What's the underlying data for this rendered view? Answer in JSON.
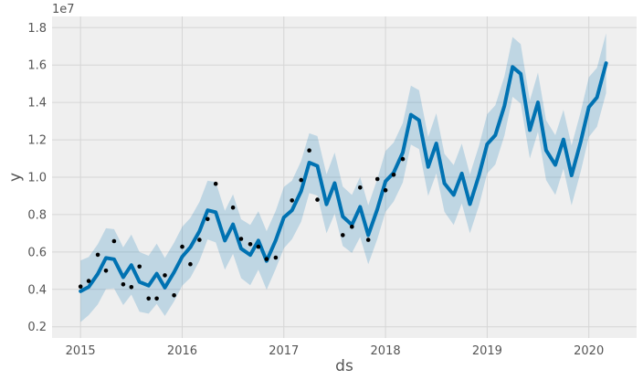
{
  "chart_data": {
    "type": "line",
    "title": "",
    "xlabel": "ds",
    "ylabel": "y",
    "y_offset_label": "1e7",
    "xlim": [
      2014.72,
      2020.47
    ],
    "ylim": [
      0.14,
      1.86
    ],
    "x_ticks": [
      {
        "value": 2015,
        "label": "2015"
      },
      {
        "value": 2016,
        "label": "2016"
      },
      {
        "value": 2017,
        "label": "2017"
      },
      {
        "value": 2018,
        "label": "2018"
      },
      {
        "value": 2019,
        "label": "2019"
      },
      {
        "value": 2020,
        "label": "2020"
      }
    ],
    "y_ticks": [
      {
        "value": 0.2,
        "label": "0.2"
      },
      {
        "value": 0.4,
        "label": "0.4"
      },
      {
        "value": 0.6,
        "label": "0.6"
      },
      {
        "value": 0.8,
        "label": "0.8"
      },
      {
        "value": 1.0,
        "label": "1.0"
      },
      {
        "value": 1.2,
        "label": "1.2"
      },
      {
        "value": 1.4,
        "label": "1.4"
      },
      {
        "value": 1.6,
        "label": "1.6"
      },
      {
        "value": 1.8,
        "label": "1.8"
      }
    ],
    "grid": true,
    "colors": {
      "background": "#efefef",
      "grid": "#d6d6d6",
      "forecast": "#0072b2",
      "band": "#0072b2",
      "band_opacity": 0.2,
      "points": "#000000"
    },
    "series": [
      {
        "name": "observed",
        "kind": "scatter",
        "points": [
          [
            2015.0,
            0.415
          ],
          [
            2015.08,
            0.445
          ],
          [
            2015.17,
            0.585
          ],
          [
            2015.25,
            0.5
          ],
          [
            2015.33,
            0.658
          ],
          [
            2015.42,
            0.427
          ],
          [
            2015.5,
            0.412
          ],
          [
            2015.58,
            0.522
          ],
          [
            2015.67,
            0.351
          ],
          [
            2015.75,
            0.351
          ],
          [
            2015.83,
            0.475
          ],
          [
            2015.92,
            0.368
          ],
          [
            2016.0,
            0.628
          ],
          [
            2016.08,
            0.535
          ],
          [
            2016.17,
            0.665
          ],
          [
            2016.25,
            0.776
          ],
          [
            2016.33,
            0.965
          ],
          [
            2016.5,
            0.838
          ],
          [
            2016.58,
            0.67
          ],
          [
            2016.67,
            0.642
          ],
          [
            2016.75,
            0.628
          ],
          [
            2016.83,
            0.562
          ],
          [
            2016.92,
            0.57
          ],
          [
            2017.08,
            0.876
          ],
          [
            2017.17,
            0.985
          ],
          [
            2017.25,
            1.143
          ],
          [
            2017.33,
            0.88
          ],
          [
            2017.58,
            0.69
          ],
          [
            2017.67,
            0.735
          ],
          [
            2017.75,
            0.945
          ],
          [
            2017.83,
            0.665
          ],
          [
            2017.92,
            0.99
          ],
          [
            2018.0,
            0.93
          ],
          [
            2018.08,
            1.013
          ],
          [
            2018.17,
            1.097
          ]
        ]
      },
      {
        "name": "forecast",
        "kind": "line",
        "points": [
          [
            2015.0,
            0.39
          ],
          [
            2015.08,
            0.413
          ],
          [
            2015.17,
            0.483
          ],
          [
            2015.25,
            0.568
          ],
          [
            2015.33,
            0.561
          ],
          [
            2015.42,
            0.465
          ],
          [
            2015.5,
            0.53
          ],
          [
            2015.58,
            0.44
          ],
          [
            2015.67,
            0.42
          ],
          [
            2015.75,
            0.484
          ],
          [
            2015.83,
            0.409
          ],
          [
            2015.92,
            0.492
          ],
          [
            2016.0,
            0.575
          ],
          [
            2016.08,
            0.625
          ],
          [
            2016.17,
            0.711
          ],
          [
            2016.25,
            0.823
          ],
          [
            2016.33,
            0.813
          ],
          [
            2016.42,
            0.661
          ],
          [
            2016.5,
            0.748
          ],
          [
            2016.58,
            0.618
          ],
          [
            2016.67,
            0.584
          ],
          [
            2016.75,
            0.661
          ],
          [
            2016.83,
            0.552
          ],
          [
            2016.92,
            0.663
          ],
          [
            2017.0,
            0.785
          ],
          [
            2017.08,
            0.823
          ],
          [
            2017.17,
            0.925
          ],
          [
            2017.25,
            1.078
          ],
          [
            2017.33,
            1.06
          ],
          [
            2017.42,
            0.855
          ],
          [
            2017.5,
            0.968
          ],
          [
            2017.58,
            0.79
          ],
          [
            2017.67,
            0.745
          ],
          [
            2017.75,
            0.841
          ],
          [
            2017.83,
            0.69
          ],
          [
            2017.92,
            0.83
          ],
          [
            2018.0,
            0.978
          ],
          [
            2018.08,
            1.024
          ],
          [
            2018.17,
            1.132
          ],
          [
            2018.25,
            1.334
          ],
          [
            2018.33,
            1.305
          ],
          [
            2018.42,
            1.055
          ],
          [
            2018.5,
            1.181
          ],
          [
            2018.58,
            0.967
          ],
          [
            2018.67,
            0.905
          ],
          [
            2018.75,
            1.02
          ],
          [
            2018.83,
            0.856
          ],
          [
            2018.92,
            1.011
          ],
          [
            2019.0,
            1.177
          ],
          [
            2019.08,
            1.225
          ],
          [
            2019.17,
            1.382
          ],
          [
            2019.25,
            1.59
          ],
          [
            2019.33,
            1.553
          ],
          [
            2019.42,
            1.252
          ],
          [
            2019.5,
            1.4
          ],
          [
            2019.58,
            1.144
          ],
          [
            2019.67,
            1.066
          ],
          [
            2019.75,
            1.202
          ],
          [
            2019.83,
            1.01
          ],
          [
            2019.92,
            1.19
          ],
          [
            2020.0,
            1.375
          ],
          [
            2020.08,
            1.427
          ],
          [
            2020.17,
            1.61
          ]
        ]
      },
      {
        "name": "uncertainty interval",
        "kind": "band",
        "lower": [
          0.225,
          0.262,
          0.32,
          0.402,
          0.405,
          0.316,
          0.372,
          0.28,
          0.27,
          0.322,
          0.258,
          0.336,
          0.42,
          0.462,
          0.553,
          0.667,
          0.651,
          0.505,
          0.59,
          0.46,
          0.422,
          0.505,
          0.398,
          0.51,
          0.62,
          0.668,
          0.762,
          0.915,
          0.902,
          0.7,
          0.805,
          0.632,
          0.595,
          0.68,
          0.535,
          0.67,
          0.815,
          0.87,
          0.972,
          1.175,
          1.15,
          0.9,
          1.02,
          0.815,
          0.745,
          0.86,
          0.7,
          0.85,
          1.02,
          1.068,
          1.223,
          1.43,
          1.395,
          1.1,
          1.243,
          0.985,
          0.905,
          1.045,
          0.85,
          1.03,
          1.215,
          1.27,
          1.45
        ],
        "upper": [
          0.555,
          0.573,
          0.642,
          0.727,
          0.722,
          0.625,
          0.693,
          0.6,
          0.58,
          0.645,
          0.568,
          0.65,
          0.735,
          0.782,
          0.868,
          0.981,
          0.975,
          0.82,
          0.908,
          0.775,
          0.745,
          0.818,
          0.711,
          0.82,
          0.948,
          0.982,
          1.087,
          1.235,
          1.22,
          1.015,
          1.132,
          0.95,
          0.905,
          1.002,
          0.85,
          0.992,
          1.14,
          1.185,
          1.29,
          1.49,
          1.465,
          1.215,
          1.342,
          1.125,
          1.065,
          1.18,
          1.015,
          1.17,
          1.337,
          1.385,
          1.54,
          1.75,
          1.712,
          1.41,
          1.56,
          1.305,
          1.225,
          1.36,
          1.17,
          1.35,
          1.535,
          1.585,
          1.77
        ]
      }
    ]
  }
}
